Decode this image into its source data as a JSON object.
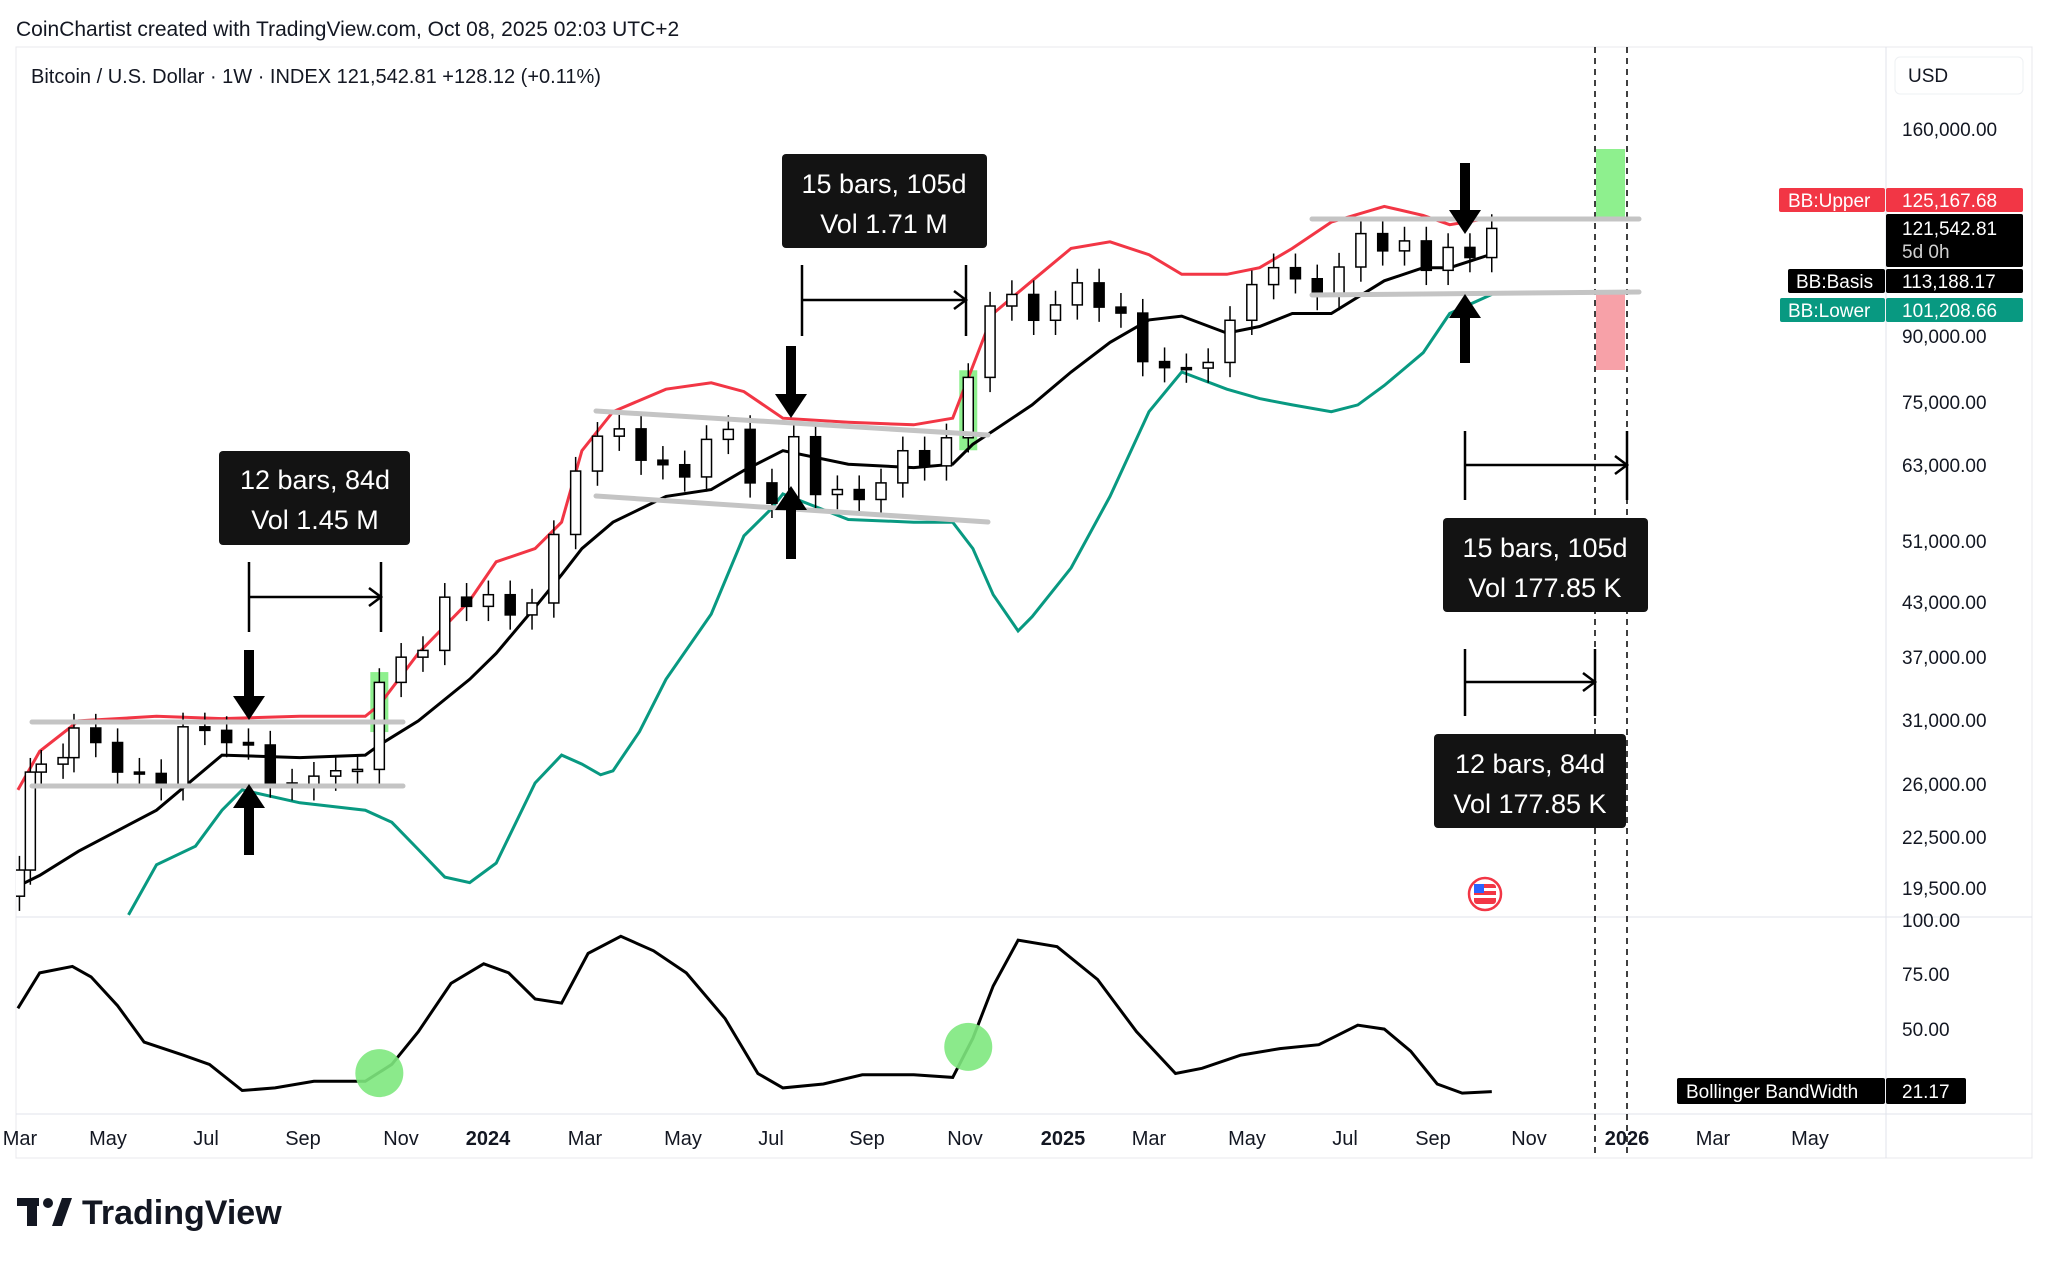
{
  "header": {
    "credit": "CoinChartist created with TradingView.com, Oct 08, 2025 02:03 UTC+2",
    "symbol_line": "Bitcoin / U.S. Dollar · 1W · INDEX  121,542.81  +128.12 (+0.11%)"
  },
  "logo": {
    "text": "TradingView"
  },
  "price_axis": {
    "currency": "USD",
    "ticks": [
      "160,000.00",
      "90,000.00",
      "75,000.00",
      "63,000.00",
      "51,000.00",
      "43,000.00",
      "37,000.00",
      "31,000.00",
      "26,000.00",
      "22,500.00",
      "19,500.00"
    ]
  },
  "bandwidth_axis": {
    "ticks": [
      "100.00",
      "75.00",
      "50.00"
    ]
  },
  "time_axis": {
    "ticks": [
      "Mar",
      "May",
      "Jul",
      "Sep",
      "Nov",
      "2024",
      "Mar",
      "May",
      "Jul",
      "Sep",
      "Nov",
      "2025",
      "Mar",
      "May",
      "Jul",
      "Sep",
      "Nov",
      "2026",
      "Mar",
      "May"
    ]
  },
  "tags": {
    "upper_label": "BB:Upper",
    "upper_value": "125,167.68",
    "price_value": "121,542.81",
    "countdown": "5d 0h",
    "basis_label": "BB:Basis",
    "basis_value": "113,188.17",
    "lower_label": "BB:Lower",
    "lower_value": "101,208.66",
    "bandwidth_label": "Bollinger BandWidth",
    "bandwidth_value": "21.17"
  },
  "annotations": {
    "box1": {
      "line1": "12 bars, 84d",
      "line2": "Vol 1.45 M"
    },
    "box2": {
      "line1": "15 bars, 105d",
      "line2": "Vol 1.71 M"
    },
    "box3": {
      "line1": "15 bars, 105d",
      "line2": "Vol 177.85 K"
    },
    "box4": {
      "line1": "12 bars, 84d",
      "line2": "Vol 177.85 K"
    }
  },
  "colors": {
    "upper": "#f23645",
    "basis": "#000000",
    "lower": "#089981",
    "up_zone": "#8ef08e",
    "down_zone": "#f7a1a8",
    "highlight": "#8ef08e"
  },
  "chart_data": {
    "type": "candlestick",
    "title": "Bitcoin / U.S. Dollar · 1W · INDEX",
    "y_scale": "log",
    "ylim": [
      18000,
      175000
    ],
    "xlim": [
      "2023-03-01",
      "2026-06-15"
    ],
    "grid": false,
    "candles": [
      [
        "2023-03-06",
        20500
      ],
      [
        "2023-03-13",
        26900
      ],
      [
        "2023-03-20",
        27500
      ],
      [
        "2023-04-03",
        28000
      ],
      [
        "2023-04-10",
        30400
      ],
      [
        "2023-04-24",
        29200
      ],
      [
        "2023-05-08",
        26900
      ],
      [
        "2023-05-22",
        26800
      ],
      [
        "2023-06-05",
        25900
      ],
      [
        "2023-06-19",
        30500
      ],
      [
        "2023-07-03",
        30200
      ],
      [
        "2023-07-17",
        29200
      ],
      [
        "2023-07-31",
        29000
      ],
      [
        "2023-08-14",
        26100
      ],
      [
        "2023-08-28",
        25900
      ],
      [
        "2023-09-11",
        26600
      ],
      [
        "2023-09-25",
        27000
      ],
      [
        "2023-10-09",
        27100
      ],
      [
        "2023-10-23",
        34500
      ],
      [
        "2023-11-06",
        37000
      ],
      [
        "2023-11-20",
        37700
      ],
      [
        "2023-12-04",
        43700
      ],
      [
        "2023-12-18",
        42600
      ],
      [
        "2024-01-01",
        44000
      ],
      [
        "2024-01-15",
        41600
      ],
      [
        "2024-01-29",
        43000
      ],
      [
        "2024-02-12",
        52000
      ],
      [
        "2024-02-26",
        62000
      ],
      [
        "2024-03-11",
        68300
      ],
      [
        "2024-03-25",
        69700
      ],
      [
        "2024-04-08",
        63900
      ],
      [
        "2024-04-22",
        63100
      ],
      [
        "2024-05-06",
        61000
      ],
      [
        "2024-05-20",
        67700
      ],
      [
        "2024-06-03",
        69600
      ],
      [
        "2024-06-17",
        60000
      ],
      [
        "2024-07-01",
        56700
      ],
      [
        "2024-07-15",
        68200
      ],
      [
        "2024-07-29",
        58100
      ],
      [
        "2024-08-12",
        58900
      ],
      [
        "2024-08-26",
        57300
      ],
      [
        "2024-09-09",
        60000
      ],
      [
        "2024-09-23",
        65600
      ],
      [
        "2024-10-07",
        62900
      ],
      [
        "2024-10-21",
        68000
      ],
      [
        "2024-11-04",
        80400
      ],
      [
        "2024-11-18",
        98000
      ],
      [
        "2024-12-02",
        101200
      ],
      [
        "2024-12-16",
        94200
      ],
      [
        "2024-12-30",
        98300
      ],
      [
        "2025-01-13",
        104500
      ],
      [
        "2025-01-27",
        97700
      ],
      [
        "2025-02-10",
        96100
      ],
      [
        "2025-02-24",
        84000
      ],
      [
        "2025-03-10",
        82600
      ],
      [
        "2025-03-24",
        82500
      ],
      [
        "2025-04-07",
        83800
      ],
      [
        "2025-04-21",
        94200
      ],
      [
        "2025-05-05",
        104000
      ],
      [
        "2025-05-19",
        109000
      ],
      [
        "2025-06-02",
        105700
      ],
      [
        "2025-06-16",
        100900
      ],
      [
        "2025-06-30",
        109200
      ],
      [
        "2025-07-14",
        119800
      ],
      [
        "2025-07-28",
        114200
      ],
      [
        "2025-08-11",
        117400
      ],
      [
        "2025-08-25",
        108200
      ],
      [
        "2025-09-08",
        115300
      ],
      [
        "2025-09-22",
        112100
      ],
      [
        "2025-10-06",
        121542.81
      ]
    ],
    "series": [
      {
        "name": "BB:Upper",
        "points": [
          [
            "2023-03-05",
            25600
          ],
          [
            "2023-03-19",
            28500
          ],
          [
            "2023-04-13",
            31000
          ],
          [
            "2023-06-02",
            31400
          ],
          [
            "2023-07-14",
            31200
          ],
          [
            "2023-09-02",
            31400
          ],
          [
            "2023-10-14",
            31400
          ],
          [
            "2023-10-23",
            32400
          ],
          [
            "2023-11-17",
            37400
          ],
          [
            "2023-12-20",
            43300
          ],
          [
            "2024-01-06",
            48200
          ],
          [
            "2024-01-31",
            50000
          ],
          [
            "2024-02-17",
            53800
          ],
          [
            "2024-03-01",
            65600
          ],
          [
            "2024-03-21",
            73100
          ],
          [
            "2024-04-24",
            77800
          ],
          [
            "2024-05-23",
            79200
          ],
          [
            "2024-06-13",
            77300
          ],
          [
            "2024-07-08",
            71800
          ],
          [
            "2024-08-19",
            71000
          ],
          [
            "2024-09-30",
            70500
          ],
          [
            "2024-10-25",
            71800
          ],
          [
            "2024-11-07",
            83000
          ],
          [
            "2024-11-20",
            96000
          ],
          [
            "2024-12-15",
            105100
          ],
          [
            "2025-01-09",
            115000
          ],
          [
            "2025-02-03",
            117100
          ],
          [
            "2025-02-28",
            113000
          ],
          [
            "2025-03-21",
            107000
          ],
          [
            "2025-04-19",
            107000
          ],
          [
            "2025-05-10",
            109000
          ],
          [
            "2025-05-31",
            115000
          ],
          [
            "2025-06-25",
            123700
          ],
          [
            "2025-07-29",
            129200
          ],
          [
            "2025-08-23",
            126000
          ],
          [
            "2025-09-09",
            122800
          ],
          [
            "2025-10-06",
            125167.68
          ]
        ]
      },
      {
        "name": "BB:Basis",
        "points": [
          [
            "2023-03-05",
            19600
          ],
          [
            "2023-03-19",
            20200
          ],
          [
            "2023-04-13",
            21600
          ],
          [
            "2023-06-02",
            24200
          ],
          [
            "2023-07-14",
            28200
          ],
          [
            "2023-09-02",
            28000
          ],
          [
            "2023-10-14",
            28200
          ],
          [
            "2023-10-23",
            29000
          ],
          [
            "2023-11-17",
            31000
          ],
          [
            "2023-12-20",
            34800
          ],
          [
            "2024-01-06",
            37400
          ],
          [
            "2024-01-31",
            42500
          ],
          [
            "2024-02-17",
            46500
          ],
          [
            "2024-03-01",
            50000
          ],
          [
            "2024-03-21",
            53800
          ],
          [
            "2024-04-24",
            57800
          ],
          [
            "2024-05-23",
            58900
          ],
          [
            "2024-06-13",
            62100
          ],
          [
            "2024-07-08",
            65600
          ],
          [
            "2024-08-19",
            63200
          ],
          [
            "2024-09-30",
            62600
          ],
          [
            "2024-10-25",
            63200
          ],
          [
            "2024-11-07",
            66800
          ],
          [
            "2024-11-20",
            69300
          ],
          [
            "2024-12-15",
            74500
          ],
          [
            "2025-01-09",
            81600
          ],
          [
            "2025-02-03",
            88600
          ],
          [
            "2025-02-28",
            94300
          ],
          [
            "2025-03-21",
            95300
          ],
          [
            "2025-04-19",
            90900
          ],
          [
            "2025-05-10",
            92600
          ],
          [
            "2025-05-31",
            96000
          ],
          [
            "2025-06-25",
            96000
          ],
          [
            "2025-07-29",
            105100
          ],
          [
            "2025-08-23",
            109000
          ],
          [
            "2025-09-09",
            109000
          ],
          [
            "2025-10-06",
            113188.17
          ]
        ]
      },
      {
        "name": "BB:Lower",
        "points": [
          [
            "2023-05-15",
            18100
          ],
          [
            "2023-06-02",
            20800
          ],
          [
            "2023-06-27",
            21900
          ],
          [
            "2023-07-14",
            24200
          ],
          [
            "2023-07-27",
            25600
          ],
          [
            "2023-09-02",
            24700
          ],
          [
            "2023-10-14",
            24200
          ],
          [
            "2023-10-31",
            23400
          ],
          [
            "2023-11-17",
            21700
          ],
          [
            "2023-12-04",
            20100
          ],
          [
            "2023-12-20",
            19800
          ],
          [
            "2024-01-06",
            20900
          ],
          [
            "2024-01-31",
            26100
          ],
          [
            "2024-02-17",
            28200
          ],
          [
            "2024-03-01",
            27500
          ],
          [
            "2024-03-13",
            26700
          ],
          [
            "2024-03-21",
            27000
          ],
          [
            "2024-04-07",
            30100
          ],
          [
            "2024-04-24",
            34800
          ],
          [
            "2024-05-23",
            41700
          ],
          [
            "2024-06-13",
            51800
          ],
          [
            "2024-06-30",
            55700
          ],
          [
            "2024-07-08",
            58200
          ],
          [
            "2024-08-19",
            54200
          ],
          [
            "2024-09-30",
            53800
          ],
          [
            "2024-10-25",
            53800
          ],
          [
            "2024-11-07",
            50000
          ],
          [
            "2024-11-20",
            44000
          ],
          [
            "2024-12-06",
            39800
          ],
          [
            "2024-12-15",
            41400
          ],
          [
            "2025-01-09",
            47400
          ],
          [
            "2025-02-03",
            57800
          ],
          [
            "2025-02-28",
            73100
          ],
          [
            "2025-03-21",
            81600
          ],
          [
            "2025-04-19",
            77800
          ],
          [
            "2025-05-10",
            75800
          ],
          [
            "2025-05-31",
            74500
          ],
          [
            "2025-06-25",
            73100
          ],
          [
            "2025-07-12",
            74500
          ],
          [
            "2025-07-29",
            78600
          ],
          [
            "2025-08-23",
            86100
          ],
          [
            "2025-09-09",
            96000
          ],
          [
            "2025-10-06",
            101208.66
          ]
        ]
      },
      {
        "name": "Bollinger BandWidth",
        "pane": "lower",
        "points": [
          [
            "2023-03-05",
            59.6
          ],
          [
            "2023-03-19",
            75.9
          ],
          [
            "2023-04-09",
            78.9
          ],
          [
            "2023-04-21",
            74.1
          ],
          [
            "2023-05-08",
            60.8
          ],
          [
            "2023-05-25",
            44.0
          ],
          [
            "2023-06-19",
            38.0
          ],
          [
            "2023-07-06",
            33.7
          ],
          [
            "2023-07-27",
            21.7
          ],
          [
            "2023-08-17",
            22.9
          ],
          [
            "2023-09-11",
            25.9
          ],
          [
            "2023-10-14",
            25.9
          ],
          [
            "2023-10-31",
            33.7
          ],
          [
            "2023-11-17",
            48.8
          ],
          [
            "2023-12-08",
            71.1
          ],
          [
            "2023-12-29",
            80.1
          ],
          [
            "2024-01-14",
            75.9
          ],
          [
            "2024-01-31",
            63.9
          ],
          [
            "2024-02-17",
            62.0
          ],
          [
            "2024-03-05",
            84.9
          ],
          [
            "2024-03-26",
            92.8
          ],
          [
            "2024-04-16",
            86.1
          ],
          [
            "2024-05-07",
            75.9
          ],
          [
            "2024-06-01",
            54.8
          ],
          [
            "2024-06-22",
            29.5
          ],
          [
            "2024-07-08",
            22.9
          ],
          [
            "2024-08-03",
            24.7
          ],
          [
            "2024-08-28",
            28.9
          ],
          [
            "2024-09-30",
            28.9
          ],
          [
            "2024-10-25",
            27.7
          ],
          [
            "2024-11-07",
            45.8
          ],
          [
            "2024-11-20",
            69.9
          ],
          [
            "2024-12-06",
            91.0
          ],
          [
            "2024-12-31",
            88.0
          ],
          [
            "2025-01-26",
            72.9
          ],
          [
            "2025-02-20",
            48.8
          ],
          [
            "2025-03-17",
            29.5
          ],
          [
            "2025-04-03",
            31.9
          ],
          [
            "2025-04-28",
            38.0
          ],
          [
            "2025-05-23",
            41.0
          ],
          [
            "2025-06-17",
            42.8
          ],
          [
            "2025-07-12",
            51.8
          ],
          [
            "2025-07-29",
            50.0
          ],
          [
            "2025-08-15",
            39.8
          ],
          [
            "2025-09-01",
            24.7
          ],
          [
            "2025-09-17",
            20.5
          ],
          [
            "2025-10-06",
            21.17
          ]
        ]
      }
    ],
    "bandwidth_ylim": [
      0,
      100
    ],
    "bandwidth_markers": [
      "2023-10-23",
      "2024-11-04"
    ]
  }
}
